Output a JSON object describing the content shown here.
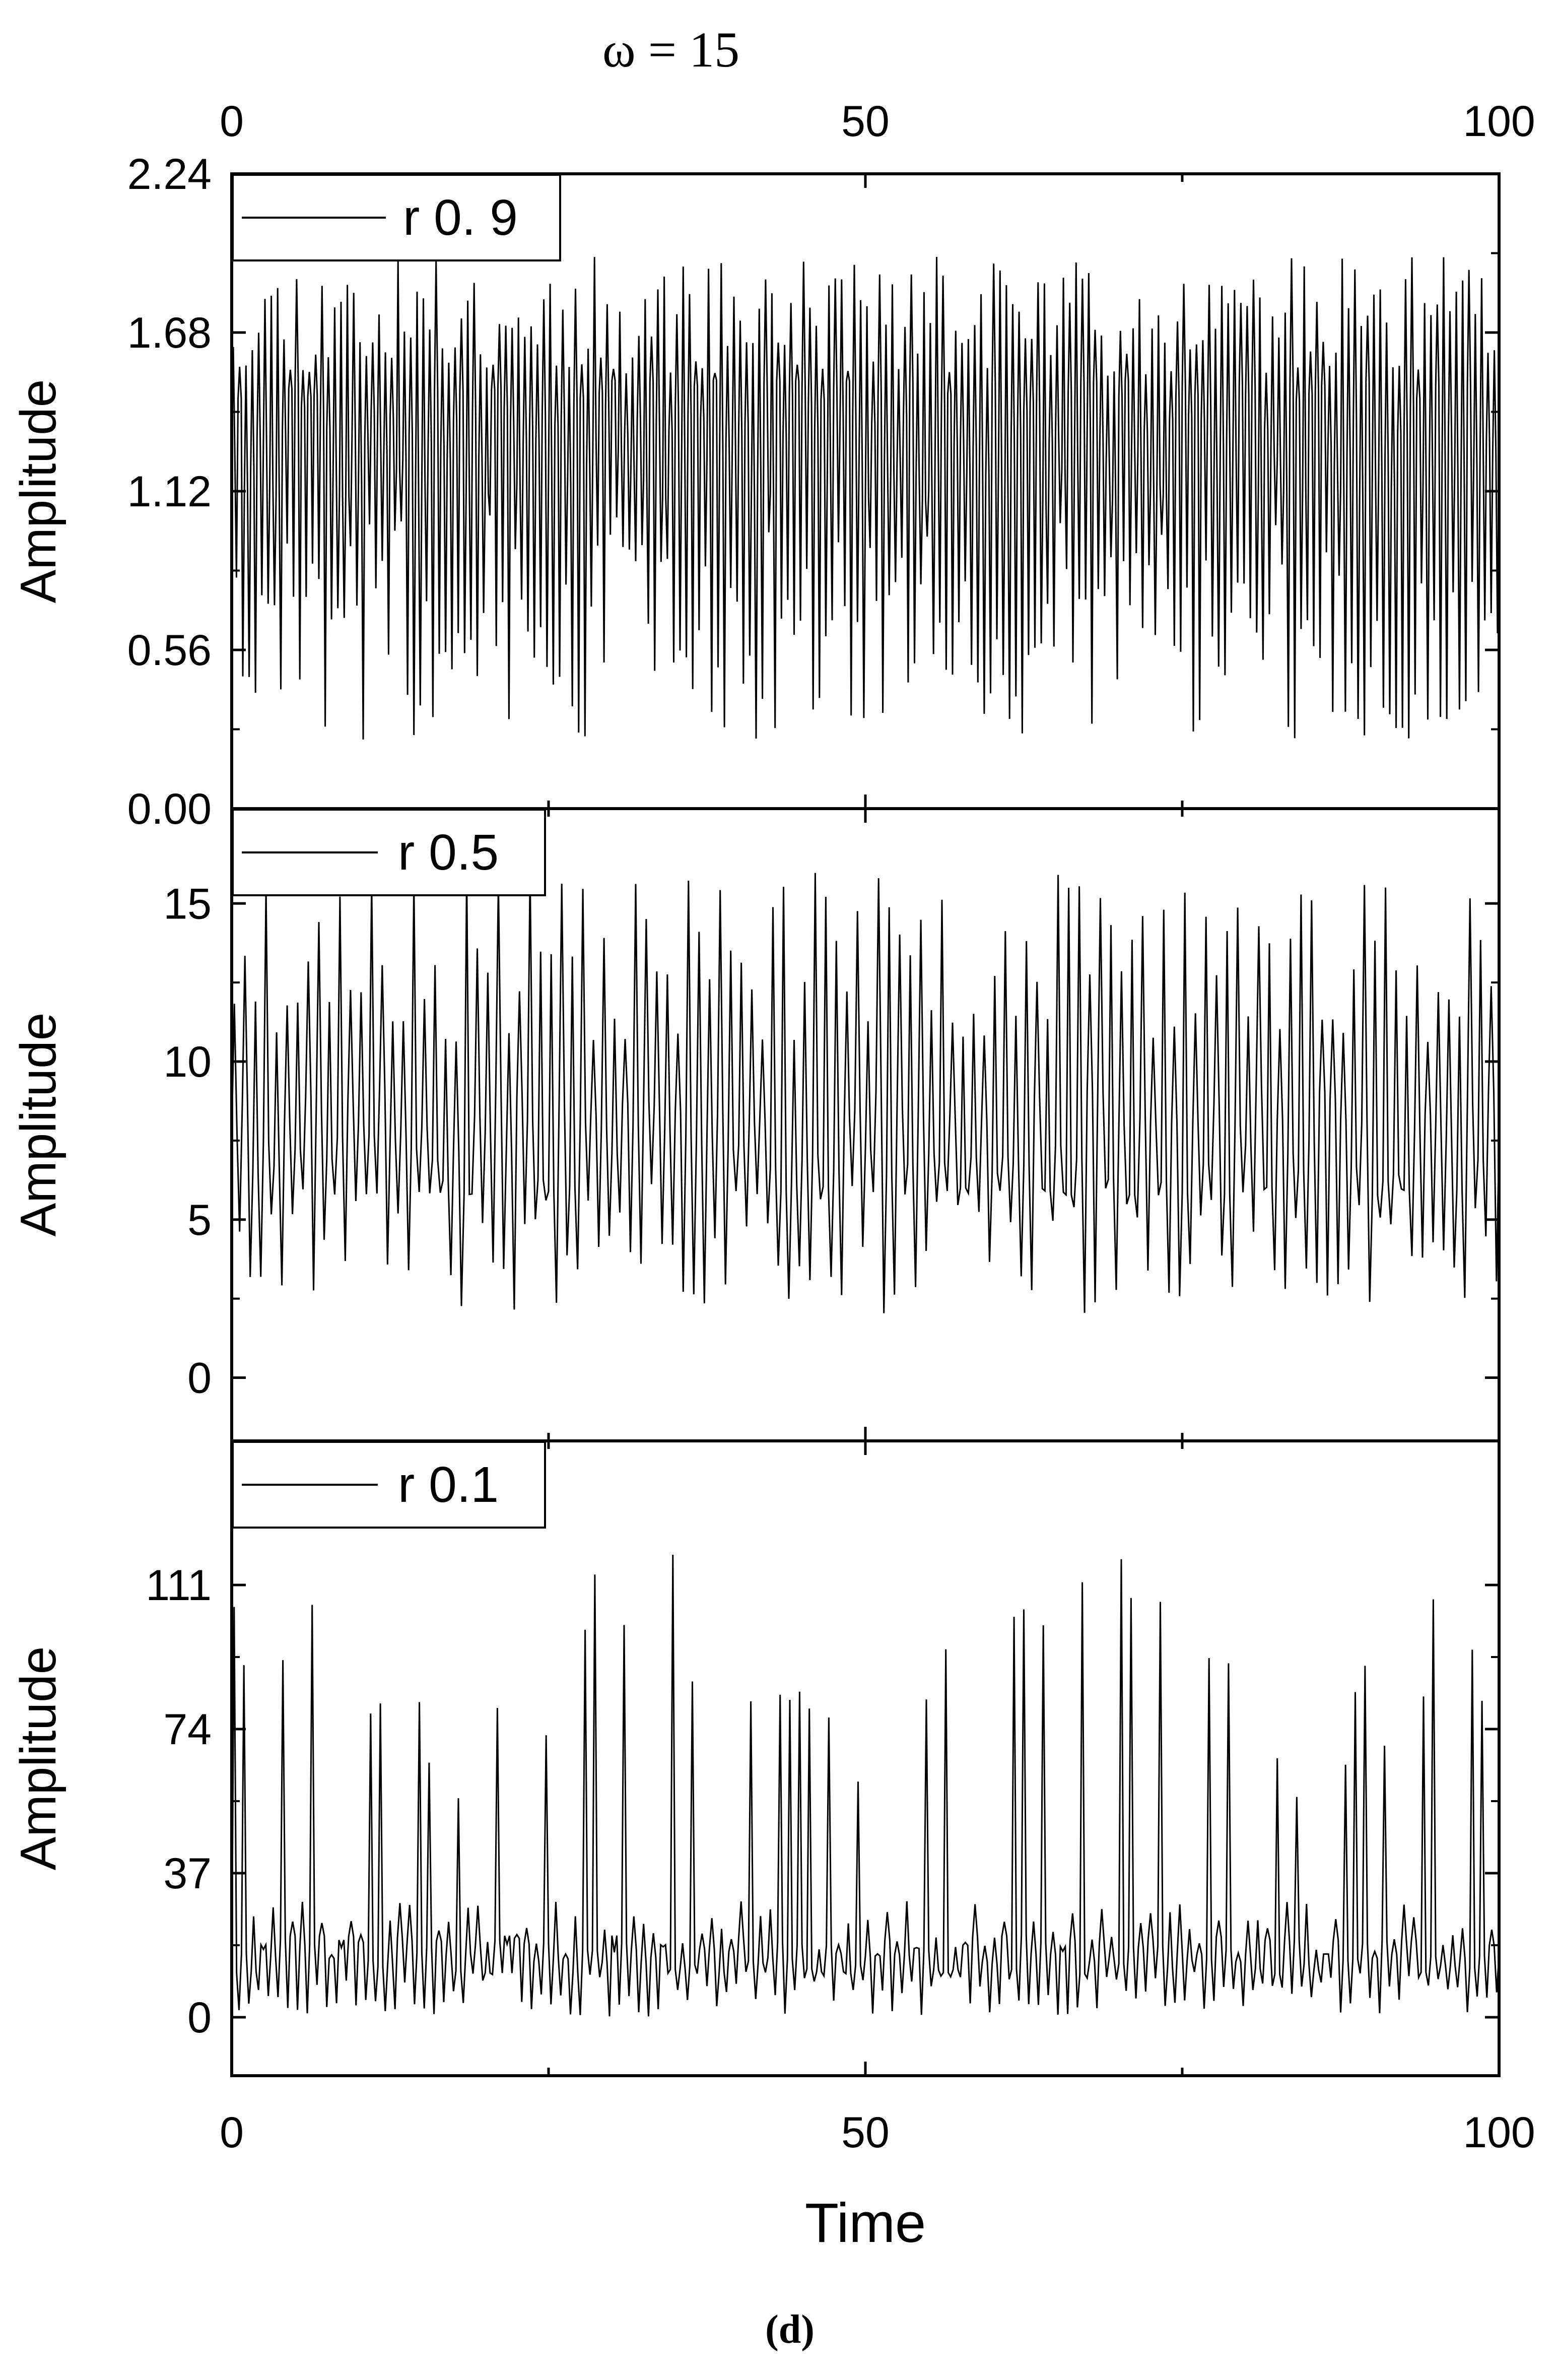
{
  "figure": {
    "top_title": "ω = 15",
    "caption": "(d)",
    "xlabel": "Time"
  },
  "chart_data": [
    {
      "type": "line",
      "ylabel": "Amplitude",
      "xlim": [
        0,
        100
      ],
      "ylim": [
        0.0,
        2.24
      ],
      "xticks": [
        0,
        50,
        100
      ],
      "yticks": [
        "0.00",
        "0.56",
        "1.12",
        "1.68",
        "2.24"
      ],
      "legend": {
        "text": "r 0. 9",
        "position": "top-left"
      },
      "series": [
        {
          "name": "r 0. 9",
          "kind": "oscillation",
          "periods": 200,
          "min": 0.24,
          "max": 1.95,
          "base": 1.3,
          "seed": 11
        }
      ]
    },
    {
      "type": "line",
      "ylabel": "Amplitude",
      "xlim": [
        0,
        100
      ],
      "ylim": [
        -2,
        18
      ],
      "xticks": [
        0,
        50,
        100
      ],
      "yticks": [
        "0",
        "5",
        "10",
        "15"
      ],
      "legend": {
        "text": "r 0.5",
        "position": "top-left"
      },
      "series": [
        {
          "name": "r 0.5",
          "kind": "oscillation",
          "periods": 120,
          "min": 2.0,
          "max": 16.0,
          "base": 7.5,
          "seed": 23
        }
      ]
    },
    {
      "type": "line",
      "ylabel": "Amplitude",
      "xlim": [
        0,
        100
      ],
      "ylim": [
        -15,
        148
      ],
      "xticks": [
        0,
        50,
        100
      ],
      "yticks": [
        "0",
        "37",
        "74",
        "111"
      ],
      "legend": {
        "text": "r 0.1",
        "position": "top-left"
      },
      "series": [
        {
          "name": "r 0.1",
          "kind": "spikes",
          "periods": 130,
          "min": 0.0,
          "max": 111.0,
          "base": 16.0,
          "seed": 37
        }
      ]
    }
  ]
}
